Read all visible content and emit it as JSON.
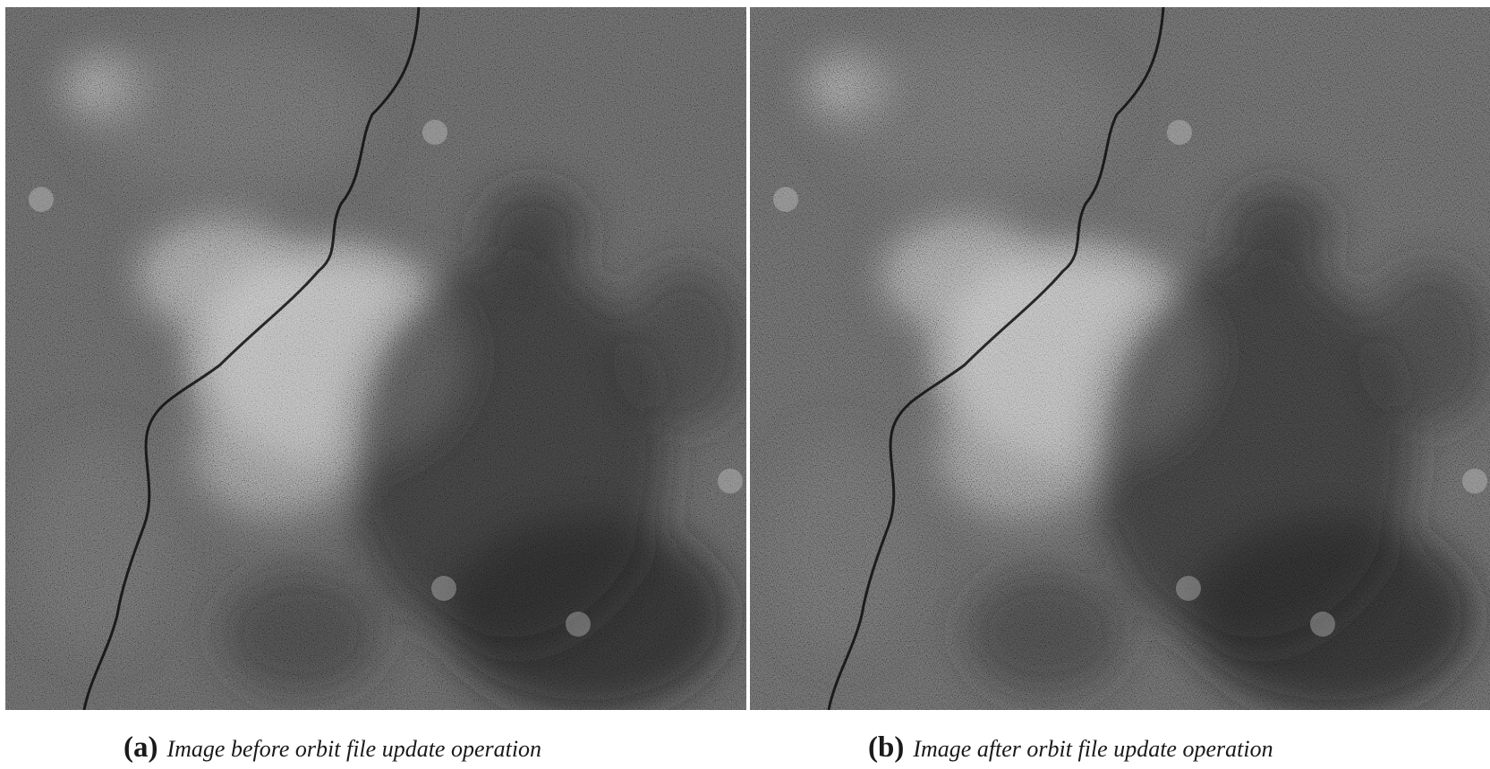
{
  "figure": {
    "panels": [
      {
        "id": "a",
        "label": "(a)",
        "caption": "Image before orbit file update operation",
        "content": "sar-image",
        "variant": "before"
      },
      {
        "id": "b",
        "label": "(b)",
        "caption": "Image after orbit file update operation",
        "content": "sar-image",
        "variant": "after"
      }
    ],
    "colors": {
      "background": "#ffffff",
      "caption_text": "#1a1a1a"
    }
  }
}
